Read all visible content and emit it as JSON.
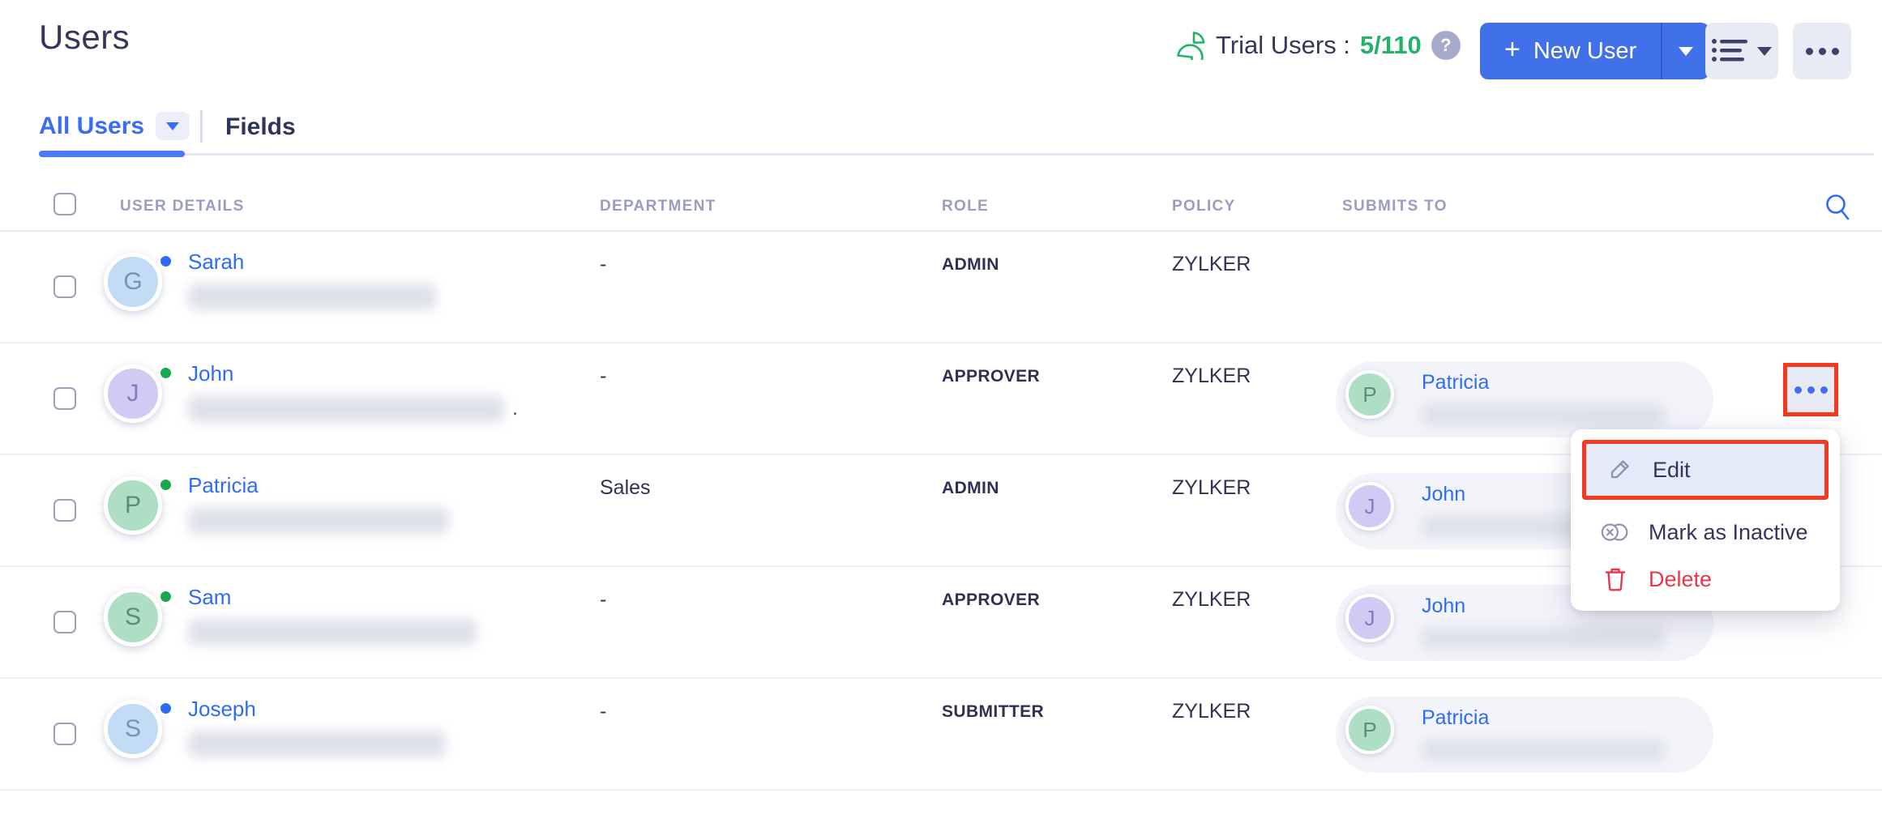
{
  "page": {
    "title": "Users"
  },
  "header": {
    "trial_label": "Trial Users :",
    "trial_count": "5/110",
    "help_glyph": "?",
    "new_user_label": "New User",
    "new_user_plus": "+"
  },
  "tabs": {
    "active_label": "All Users",
    "fields_label": "Fields"
  },
  "table": {
    "columns": {
      "user_details": "USER DETAILS",
      "department": "DEPARTMENT",
      "role": "ROLE",
      "policy": "POLICY",
      "submits_to": "SUBMITS TO"
    },
    "rows": [
      {
        "name": "Sarah",
        "avatar_letter": "G",
        "avatar_color": "blue",
        "status_color": "blue",
        "email_redacted": true,
        "email_blur_width": 306,
        "email_suffix": "",
        "department": "-",
        "role": "ADMIN",
        "policy": "ZYLKER",
        "submits_to": null,
        "actions_highlighted": false
      },
      {
        "name": "John",
        "avatar_letter": "J",
        "avatar_color": "purple",
        "status_color": "green",
        "email_redacted": true,
        "email_blur_width": 390,
        "email_suffix": ".",
        "department": "-",
        "role": "APPROVER",
        "policy": "ZYLKER",
        "submits_to": {
          "name": "Patricia",
          "letter": "P",
          "color": "green"
        },
        "actions_highlighted": true
      },
      {
        "name": "Patricia",
        "avatar_letter": "P",
        "avatar_color": "green",
        "status_color": "green",
        "email_redacted": true,
        "email_blur_width": 322,
        "email_suffix": "",
        "department": "Sales",
        "role": "ADMIN",
        "policy": "ZYLKER",
        "submits_to": {
          "name": "John",
          "letter": "J",
          "color": "purple"
        },
        "actions_highlighted": false
      },
      {
        "name": "Sam",
        "avatar_letter": "S",
        "avatar_color": "green",
        "status_color": "green",
        "email_redacted": true,
        "email_blur_width": 356,
        "email_suffix": "",
        "department": "-",
        "role": "APPROVER",
        "policy": "ZYLKER",
        "submits_to": {
          "name": "John",
          "letter": "J",
          "color": "purple"
        },
        "actions_highlighted": false
      },
      {
        "name": "Joseph",
        "avatar_letter": "S",
        "avatar_color": "blue",
        "status_color": "blue",
        "email_redacted": true,
        "email_blur_width": 318,
        "email_suffix": "",
        "department": "-",
        "role": "SUBMITTER",
        "policy": "ZYLKER",
        "submits_to": {
          "name": "Patricia",
          "letter": "P",
          "color": "green"
        },
        "actions_highlighted": false
      }
    ]
  },
  "context_menu": {
    "items": [
      {
        "label": "Edit",
        "icon": "pencil-icon",
        "highlighted": true
      },
      {
        "label": "Mark as Inactive",
        "icon": "toggle-off-icon",
        "highlighted": false
      },
      {
        "label": "Delete",
        "icon": "trash-icon",
        "highlighted": false,
        "danger": true
      }
    ]
  },
  "icons": {
    "pie-chart-icon": "quarter-sliced pie outline (green)",
    "help-icon": "white ? in gray circle",
    "list-view-icon": "bulleted list with down caret",
    "more-icon": "three horizontal dots",
    "search-icon": "blue magnifier",
    "pencil-icon": "outline pencil",
    "toggle-off-icon": "toggle with x",
    "trash-icon": "red trash can",
    "checkbox": "empty rounded square"
  },
  "colors": {
    "accent_blue": "#4171e8",
    "link_blue": "#2e6cf3",
    "tab_blue": "#3a6cf5",
    "trial_green": "#24b26b",
    "status_green": "#17a94d",
    "status_blue": "#2d6bf2",
    "delete_red": "#e8374a",
    "annotation_red": "#f4391f",
    "header_gray": "#999dbf"
  }
}
